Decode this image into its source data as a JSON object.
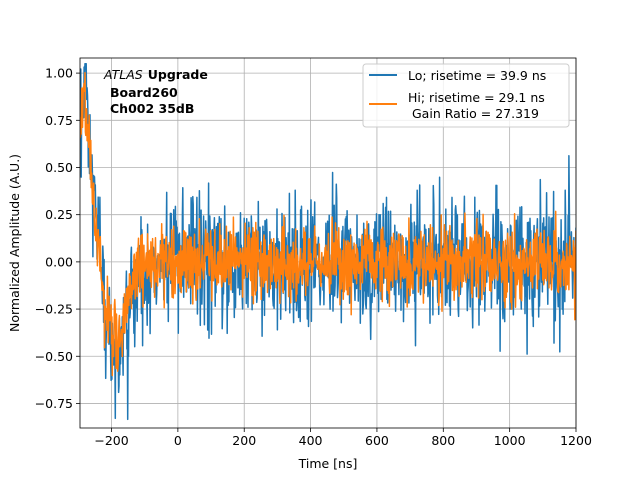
{
  "chart_data": {
    "type": "line",
    "xlabel": "Time [ns]",
    "ylabel": "Normalized Amplitude (A.U.)",
    "xlim": [
      -295,
      1200
    ],
    "ylim": [
      -0.88,
      1.08
    ],
    "xticks": [
      -200,
      0,
      200,
      400,
      600,
      800,
      1000,
      1200
    ],
    "xtick_labels": [
      "−200",
      "0",
      "200",
      "400",
      "600",
      "800",
      "1000",
      "1200"
    ],
    "yticks": [
      -0.75,
      -0.5,
      -0.25,
      0.0,
      0.25,
      0.5,
      0.75,
      1.0
    ],
    "ytick_labels": [
      "−0.75",
      "−0.50",
      "−0.25",
      "0.00",
      "0.25",
      "0.50",
      "0.75",
      "1.00"
    ],
    "grid": true,
    "legend_position": "top-right",
    "annotation": {
      "italic": "ATLAS",
      "bold": "Upgrade",
      "line2": "Board260",
      "line3": "Ch002 35dB"
    },
    "series": [
      {
        "name": "Lo",
        "legend_label": "Lo; risetime = 39.9 ns",
        "color": "#1f77b4",
        "noise_std": 0.17,
        "keypoints": [
          [
            -295,
            0.72
          ],
          [
            -280,
            0.95
          ],
          [
            -260,
            0.45
          ],
          [
            -240,
            0.1
          ],
          [
            -220,
            -0.25
          ],
          [
            -200,
            -0.45
          ],
          [
            -180,
            -0.52
          ],
          [
            -160,
            -0.42
          ],
          [
            -140,
            -0.22
          ],
          [
            -120,
            -0.08
          ],
          [
            -60,
            0.0
          ],
          [
            1200,
            0.0
          ]
        ]
      },
      {
        "name": "Hi",
        "legend_label": "Hi; risetime = 29.1 ns",
        "legend_label_line2": "Gain Ratio = 27.319",
        "color": "#ff7f0e",
        "noise_std": 0.1,
        "keypoints": [
          [
            -295,
            0.75
          ],
          [
            -280,
            0.9
          ],
          [
            -260,
            0.42
          ],
          [
            -240,
            0.05
          ],
          [
            -220,
            -0.25
          ],
          [
            -200,
            -0.38
          ],
          [
            -180,
            -0.4
          ],
          [
            -160,
            -0.3
          ],
          [
            -140,
            -0.15
          ],
          [
            -120,
            -0.05
          ],
          [
            -60,
            0.0
          ],
          [
            1200,
            0.0
          ]
        ]
      }
    ]
  }
}
